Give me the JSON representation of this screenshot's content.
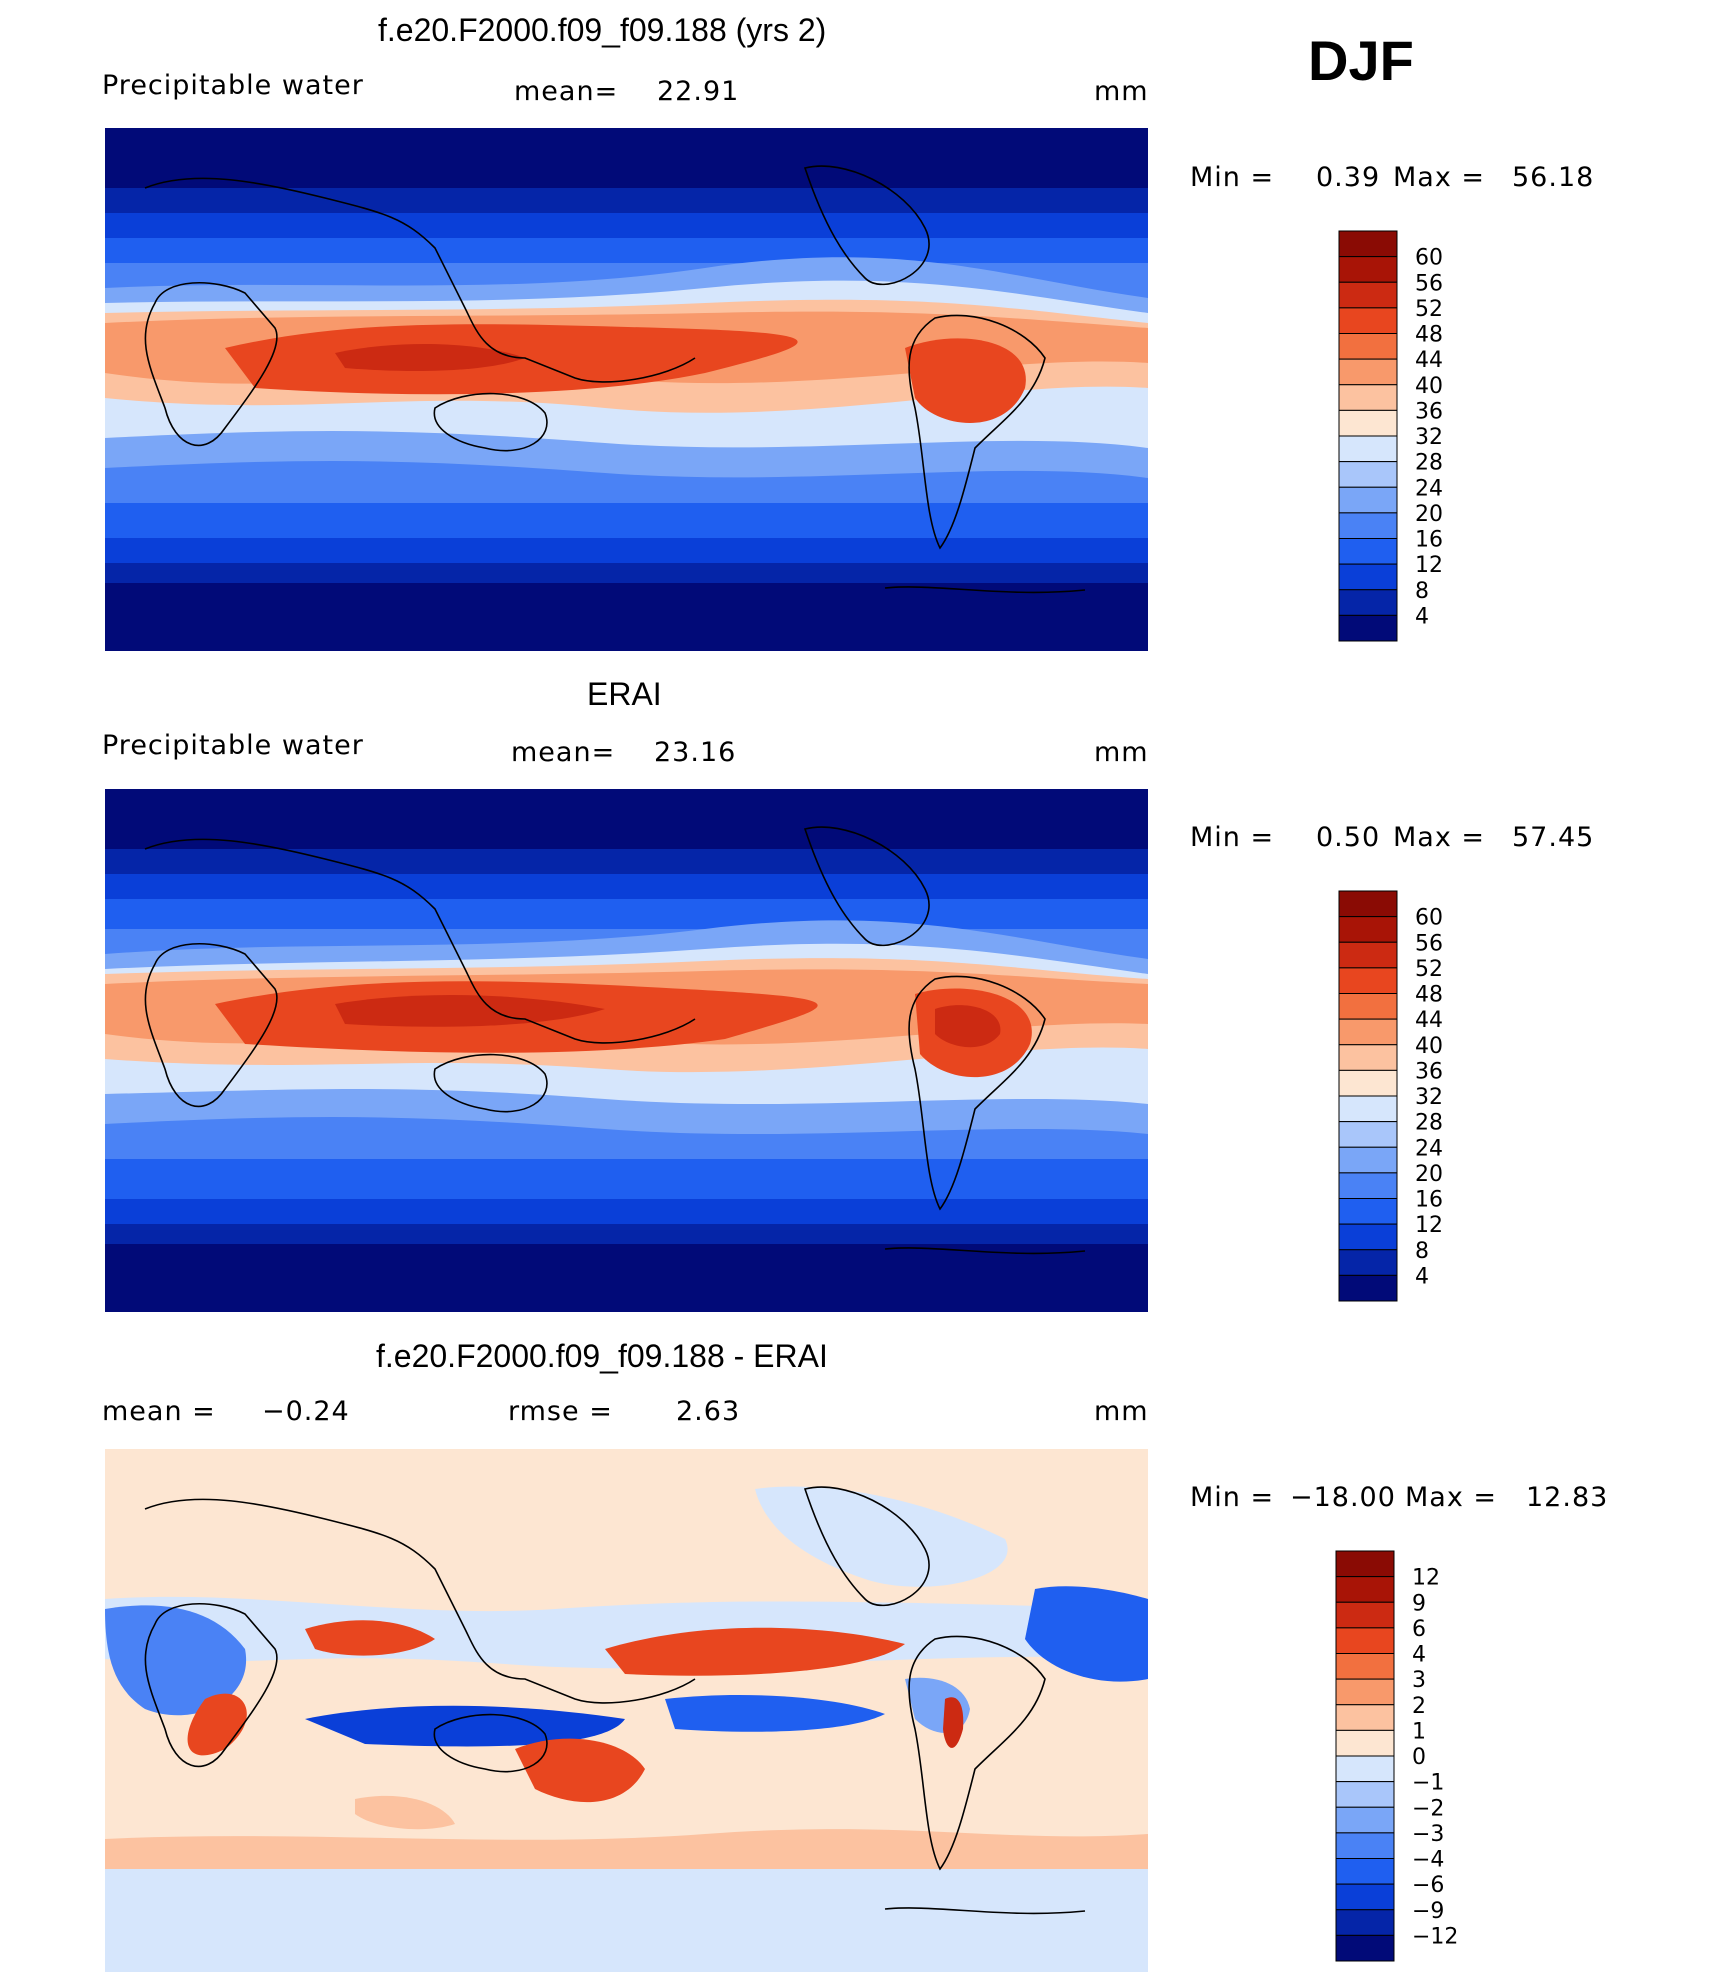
{
  "season": "DJF",
  "panels": [
    {
      "title": "f.e20.F2000.f09_f09.188 (yrs 2)",
      "left_label": "Precipitable water",
      "mid_label": "mean=",
      "mid_value": "22.91",
      "units": "mm",
      "stats": {
        "min_label": "Min =",
        "min": "0.39",
        "max_label": "Max =",
        "max": "56.18"
      }
    },
    {
      "title": "ERAI",
      "left_label": "Precipitable water",
      "mid_label": "mean=",
      "mid_value": "23.16",
      "units": "mm",
      "stats": {
        "min_label": "Min =",
        "min": "0.50",
        "max_label": "Max =",
        "max": "57.45"
      }
    },
    {
      "title": "f.e20.F2000.f09_f09.188 - ERAI",
      "left_label": "mean =",
      "left_value": "−0.24",
      "mid_label": "rmse =",
      "mid_value": "2.63",
      "units": "mm",
      "stats": {
        "min_label": "Min =",
        "min": "−18.00",
        "max_label": "Max =",
        "max": "12.83"
      }
    }
  ],
  "chart_data": [
    {
      "type": "heatmap",
      "title": "f.e20.F2000.f09_f09.188 (yrs 2)",
      "variable": "Precipitable water",
      "units": "mm",
      "mean": 22.91,
      "min": 0.39,
      "max": 56.18,
      "colorbar_levels": [
        4,
        8,
        12,
        16,
        20,
        24,
        28,
        32,
        36,
        40,
        44,
        48,
        52,
        56,
        60
      ],
      "colorbar_colors": [
        "#010a78",
        "#0525a8",
        "#0a3fd8",
        "#1f5ff0",
        "#4a82f5",
        "#7aa6f7",
        "#a9c6fa",
        "#d6e6fc",
        "#fde6d2",
        "#fcc2a0",
        "#f8996b",
        "#f2703f",
        "#e8461f",
        "#cc2a12",
        "#a81406",
        "#8a0b04"
      ]
    },
    {
      "type": "heatmap",
      "title": "ERAI",
      "variable": "Precipitable water",
      "units": "mm",
      "mean": 23.16,
      "min": 0.5,
      "max": 57.45,
      "colorbar_levels": [
        4,
        8,
        12,
        16,
        20,
        24,
        28,
        32,
        36,
        40,
        44,
        48,
        52,
        56,
        60
      ],
      "colorbar_colors": [
        "#010a78",
        "#0525a8",
        "#0a3fd8",
        "#1f5ff0",
        "#4a82f5",
        "#7aa6f7",
        "#a9c6fa",
        "#d6e6fc",
        "#fde6d2",
        "#fcc2a0",
        "#f8996b",
        "#f2703f",
        "#e8461f",
        "#cc2a12",
        "#a81406",
        "#8a0b04"
      ]
    },
    {
      "type": "heatmap",
      "title": "f.e20.F2000.f09_f09.188 - ERAI",
      "units": "mm",
      "mean": -0.24,
      "rmse": 2.63,
      "min": -18.0,
      "max": 12.83,
      "colorbar_levels": [
        -12,
        -9,
        -6,
        -4,
        -3,
        -2,
        -1,
        0,
        1,
        2,
        3,
        4,
        6,
        9,
        12
      ],
      "colorbar_colors": [
        "#010a78",
        "#0525a8",
        "#0a3fd8",
        "#1f5ff0",
        "#4a82f5",
        "#7aa6f7",
        "#a9c6fa",
        "#d6e6fc",
        "#fde6d2",
        "#fcc2a0",
        "#f8996b",
        "#f2703f",
        "#e8461f",
        "#cc2a12",
        "#a81406",
        "#8a0b04"
      ]
    }
  ],
  "colorbar_labels": [
    [
      "60",
      "56",
      "52",
      "48",
      "44",
      "40",
      "36",
      "32",
      "28",
      "24",
      "20",
      "16",
      "12",
      "8",
      "4"
    ],
    [
      "60",
      "56",
      "52",
      "48",
      "44",
      "40",
      "36",
      "32",
      "28",
      "24",
      "20",
      "16",
      "12",
      "8",
      "4"
    ],
    [
      "12",
      "9",
      "6",
      "4",
      "3",
      "2",
      "1",
      "0",
      "−1",
      "−2",
      "−3",
      "−4",
      "−6",
      "−9",
      "−12"
    ]
  ]
}
